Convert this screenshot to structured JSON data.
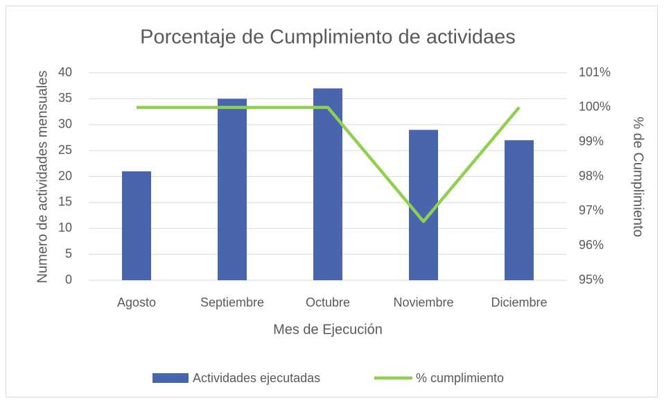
{
  "chart_data": {
    "type": "combo",
    "title": "Porcentaje de Cumplimiento de actividaes",
    "x_label": "Mes de Ejecución",
    "y_label": "Numero de actividades mensuales",
    "y2_label": "% de Cumplimiento",
    "categories": [
      "Agosto",
      "Septiembre",
      "Octubre",
      "Noviembre",
      "Diciembre"
    ],
    "series": [
      {
        "name": "Actividades ejecutadas",
        "type": "bar",
        "color": "#4865ad",
        "values": [
          21,
          35,
          37,
          29,
          27
        ]
      },
      {
        "name": "% cumplimiento",
        "type": "line",
        "axis": "y2",
        "color": "#8fd14f",
        "values": [
          100,
          100,
          100,
          96.7,
          100
        ]
      }
    ],
    "ylim": [
      0,
      40
    ],
    "yticks": [
      0,
      5,
      10,
      15,
      20,
      25,
      30,
      35,
      40
    ],
    "y2lim": [
      95,
      101
    ],
    "y2ticks": [
      {
        "value": 95,
        "label": "95%"
      },
      {
        "value": 96,
        "label": "96%"
      },
      {
        "value": 97,
        "label": "97%"
      },
      {
        "value": 98,
        "label": "98%"
      },
      {
        "value": 99,
        "label": "99%"
      },
      {
        "value": 100,
        "label": "100%"
      },
      {
        "value": 101,
        "label": "101%"
      }
    ],
    "grid": true,
    "legend": "bottom"
  }
}
